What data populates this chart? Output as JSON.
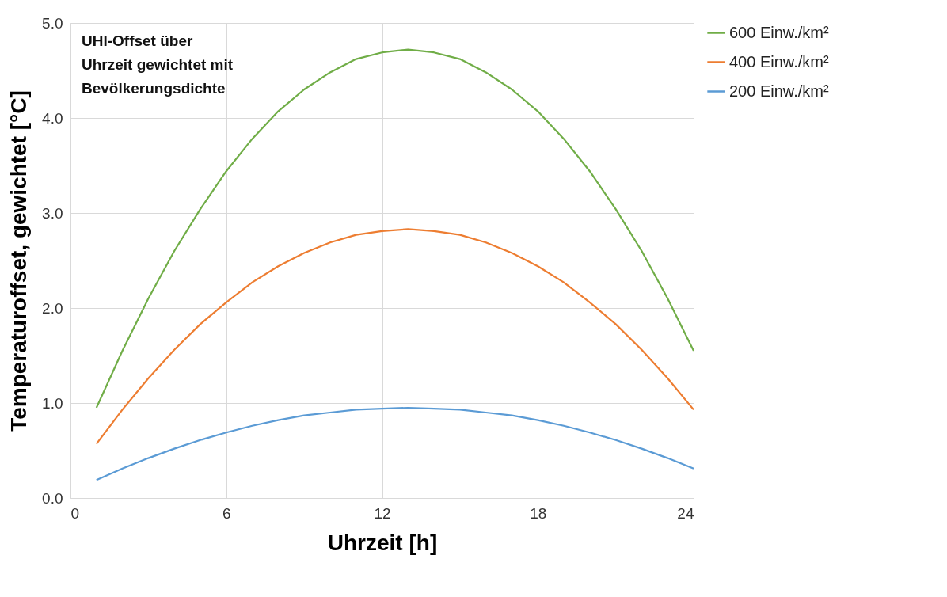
{
  "chart_data": {
    "type": "line",
    "title": "UHI-Offset über Uhrzeit gewichtet mit Bevölkerungsdichte",
    "xlabel": "Uhrzeit [h]",
    "ylabel": "Temperaturoffset, gewichtet [°C]",
    "x": [
      1,
      2,
      3,
      4,
      5,
      6,
      7,
      8,
      9,
      10,
      11,
      12,
      13,
      14,
      15,
      16,
      17,
      18,
      19,
      20,
      21,
      22,
      23,
      24
    ],
    "series": [
      {
        "name": "600 Einw./km²",
        "color": "#70ad47",
        "values": [
          0.95,
          1.55,
          2.1,
          2.6,
          3.04,
          3.44,
          3.78,
          4.07,
          4.3,
          4.48,
          4.62,
          4.69,
          4.72,
          4.69,
          4.62,
          4.48,
          4.3,
          4.07,
          3.78,
          3.44,
          3.04,
          2.6,
          2.1,
          1.55
        ]
      },
      {
        "name": "400 Einw./km²",
        "color": "#ed7d31",
        "values": [
          0.57,
          0.93,
          1.26,
          1.56,
          1.83,
          2.06,
          2.27,
          2.44,
          2.58,
          2.69,
          2.77,
          2.81,
          2.83,
          2.81,
          2.77,
          2.69,
          2.58,
          2.44,
          2.27,
          2.06,
          1.83,
          1.56,
          1.26,
          0.93
        ]
      },
      {
        "name": "200 Einw./km²",
        "color": "#5b9bd5",
        "values": [
          0.19,
          0.31,
          0.42,
          0.52,
          0.61,
          0.69,
          0.76,
          0.82,
          0.87,
          0.9,
          0.93,
          0.94,
          0.95,
          0.94,
          0.93,
          0.9,
          0.87,
          0.82,
          0.76,
          0.69,
          0.61,
          0.52,
          0.42,
          0.31
        ]
      }
    ],
    "xlim": [
      0,
      24
    ],
    "xticks": [
      0,
      6,
      12,
      18,
      24
    ],
    "ylim": [
      0,
      5
    ],
    "yticks": [
      {
        "value": 0,
        "label": "0.0"
      },
      {
        "value": 1,
        "label": "1.0"
      },
      {
        "value": 2,
        "label": "2.0"
      },
      {
        "value": 3,
        "label": "3.0"
      },
      {
        "value": 4,
        "label": "4.0"
      },
      {
        "value": 5,
        "label": "5.0"
      }
    ],
    "grid": true,
    "legend": "right",
    "marker": "none",
    "line_style": "solid"
  }
}
